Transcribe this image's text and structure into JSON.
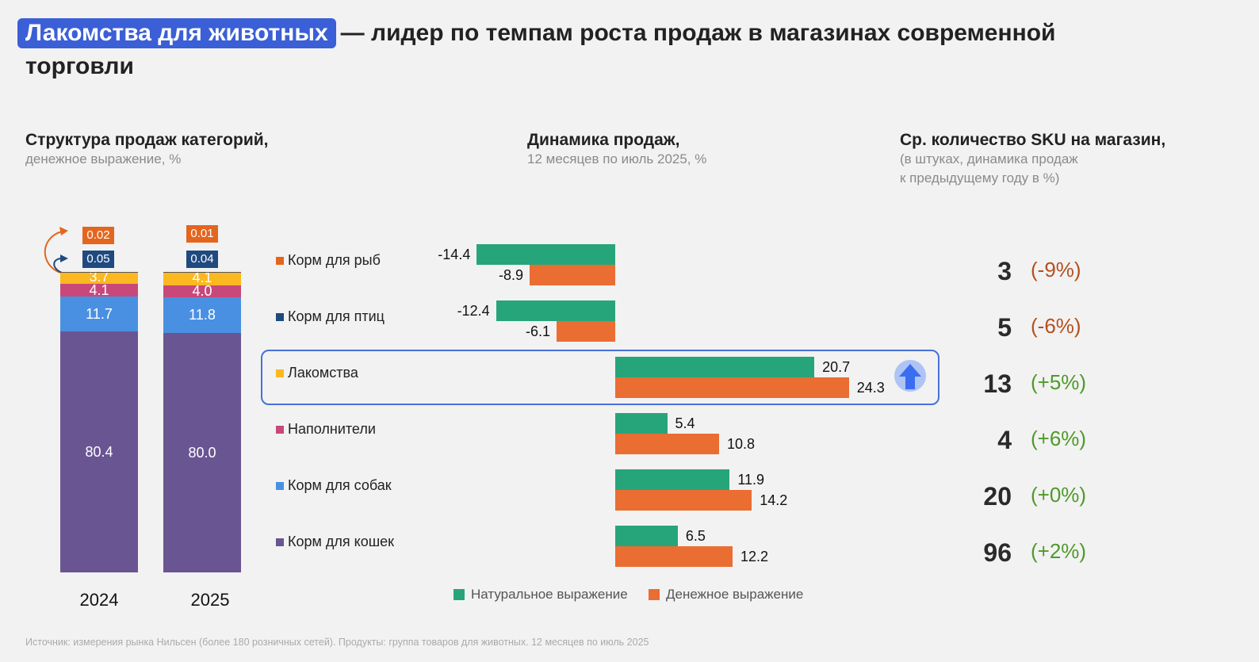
{
  "header": {
    "highlight": "Лакомства для животных",
    "title_rest": "— лидер по темпам роста продаж в магазинах современной",
    "title_line2": "торговли"
  },
  "sections": {
    "structure": {
      "title": "Структура продаж категорий,",
      "subtitle": "денежное выражение, %"
    },
    "dynamics": {
      "title": "Динамика продаж,",
      "subtitle": "12 месяцев по июль 2025, %"
    },
    "sku": {
      "title": "Ср. количество SKU на магазин,",
      "subtitle1": "(в штуках, динамика продаж",
      "subtitle2": "к предыдущему году в %)"
    }
  },
  "colors": {
    "fish": "#e3661e",
    "birds": "#1f4a80",
    "treats": "#fbb820",
    "fillers": "#c9487a",
    "dogs": "#4a90e2",
    "cats": "#6a5593",
    "natural": "#27a57a",
    "money": "#ea6d32",
    "pos": "#4e9a2a",
    "neg": "#b5501e",
    "accent": "#3b5fd6"
  },
  "chart_data": [
    {
      "type": "bar",
      "stacked": true,
      "title": "Структура продаж категорий, денежное выражение, %",
      "categories": [
        "2024",
        "2025"
      ],
      "series": [
        {
          "name": "Корм для кошек",
          "values": [
            80.4,
            80.0
          ]
        },
        {
          "name": "Корм для собак",
          "values": [
            11.7,
            11.8
          ]
        },
        {
          "name": "Наполнители",
          "values": [
            4.1,
            4.0
          ]
        },
        {
          "name": "Лакомства",
          "values": [
            3.7,
            4.1
          ]
        },
        {
          "name": "Корм для птиц",
          "values": [
            0.05,
            0.04
          ]
        },
        {
          "name": "Корм для рыб",
          "values": [
            0.02,
            0.01
          ]
        }
      ],
      "labels": {
        "2024": {
          "cats": "80.4",
          "dogs": "11.7",
          "fillers": "4.1",
          "treats": "3.7",
          "birds": "0.05",
          "fish": "0.02"
        },
        "2025": {
          "cats": "80.0",
          "dogs": "11.8",
          "fillers": "4.0",
          "treats": "4.1",
          "birds": "0.04",
          "fish": "0.01"
        }
      },
      "ylim": [
        0,
        100
      ]
    },
    {
      "type": "bar",
      "orientation": "horizontal",
      "title": "Динамика продаж, 12 месяцев по июль 2025, %",
      "categories": [
        "Корм для рыб",
        "Корм для птиц",
        "Лакомства",
        "Наполнители",
        "Корм для собак",
        "Корм для кошек"
      ],
      "series": [
        {
          "name": "Натуральное выражение",
          "values": [
            -14.4,
            -12.4,
            20.7,
            5.4,
            11.9,
            6.5
          ]
        },
        {
          "name": "Денежное выражение",
          "values": [
            -8.9,
            -6.1,
            24.3,
            10.8,
            14.2,
            12.2
          ]
        }
      ],
      "value_labels": {
        "natural": [
          "-14.4",
          "-12.4",
          "20.7",
          "5.4",
          "11.9",
          "6.5"
        ],
        "money": [
          "-8.9",
          "-6.1",
          "24.3",
          "10.8",
          "14.2",
          "12.2"
        ]
      },
      "legend": [
        "Натуральное выражение",
        "Денежное выражение"
      ],
      "legend_position": "bottom",
      "highlighted_category": "Лакомства",
      "xlim": [
        -15,
        25
      ]
    },
    {
      "type": "table",
      "title": "Ср. количество SKU на магазин",
      "rows": [
        {
          "category": "Корм для рыб",
          "sku": "3",
          "change": "(-9%)",
          "sign": "neg"
        },
        {
          "category": "Корм для птиц",
          "sku": "5",
          "change": "(-6%)",
          "sign": "neg"
        },
        {
          "category": "Лакомства",
          "sku": "13",
          "change": "(+5%)",
          "sign": "pos"
        },
        {
          "category": "Наполнители",
          "sku": "4",
          "change": "(+6%)",
          "sign": "pos"
        },
        {
          "category": "Корм для собак",
          "sku": "20",
          "change": "(+0%)",
          "sign": "pos"
        },
        {
          "category": "Корм для кошек",
          "sku": "96",
          "change": "(+2%)",
          "sign": "pos"
        }
      ]
    }
  ],
  "categories": [
    {
      "label": "Корм для рыб",
      "color_key": "fish"
    },
    {
      "label": "Корм для птиц",
      "color_key": "birds"
    },
    {
      "label": "Лакомства",
      "color_key": "treats"
    },
    {
      "label": "Наполнители",
      "color_key": "fillers"
    },
    {
      "label": "Корм для собак",
      "color_key": "dogs"
    },
    {
      "label": "Корм для кошек",
      "color_key": "cats"
    }
  ],
  "legend": {
    "natural": "Натуральное выражение",
    "money": "Денежное выражение"
  },
  "icons": {
    "highlight": "arrow-up-icon",
    "curved": "curved-arrow-icon"
  },
  "footer": "Источник: измерения рынка Нильсен (более 180 розничных сетей).  Продукты: группа товаров для животных. 12 месяцев по июль 2025"
}
